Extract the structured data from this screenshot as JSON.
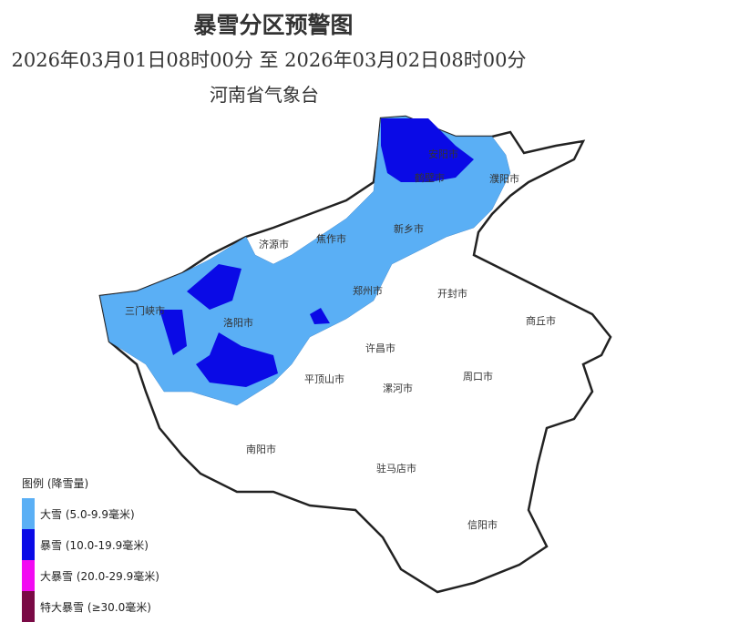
{
  "header": {
    "title": "暴雪分区预警图",
    "period": "2026年03月01日08时00分 至 2026年03月02日08时00分",
    "issuer": "河南省气象台"
  },
  "map": {
    "cities": [
      {
        "name": "安阳市"
      },
      {
        "name": "鹤壁市"
      },
      {
        "name": "濮阳市"
      },
      {
        "name": "新乡市"
      },
      {
        "name": "焦作市"
      },
      {
        "name": "济源市"
      },
      {
        "name": "郑州市"
      },
      {
        "name": "开封市"
      },
      {
        "name": "三门峡市"
      },
      {
        "name": "洛阳市"
      },
      {
        "name": "商丘市"
      },
      {
        "name": "许昌市"
      },
      {
        "name": "平顶山市"
      },
      {
        "name": "漯河市"
      },
      {
        "name": "周口市"
      },
      {
        "name": "南阳市"
      },
      {
        "name": "驻马店市"
      },
      {
        "name": "信阳市"
      }
    ]
  },
  "legend": {
    "title": "图例 (降雪量)",
    "items": [
      {
        "label": "大雪 (5.0-9.9毫米)",
        "color": "#5aaff5"
      },
      {
        "label": "暴雪 (10.0-19.9毫米)",
        "color": "#0a0ae6"
      },
      {
        "label": "大暴雪 (20.0-29.9毫米)",
        "color": "#f20af2"
      },
      {
        "label": "特大暴雪 (≥30.0毫米)",
        "color": "#7a0a45"
      }
    ]
  }
}
